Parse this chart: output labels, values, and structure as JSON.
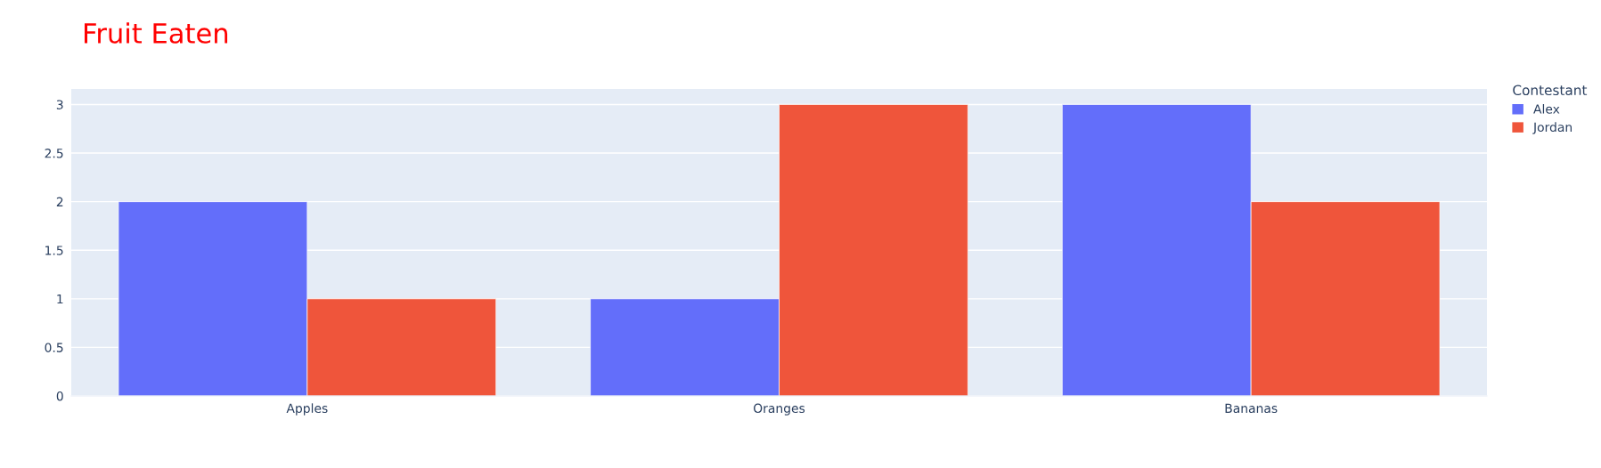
{
  "chart_data": {
    "type": "bar",
    "title": "Fruit Eaten",
    "legend_title": "Contestant",
    "categories": [
      "Apples",
      "Oranges",
      "Bananas"
    ],
    "series": [
      {
        "name": "Alex",
        "color": "#636efa",
        "values": [
          2,
          1,
          3
        ]
      },
      {
        "name": "Jordan",
        "color": "#ef553b",
        "values": [
          1,
          3,
          2
        ]
      }
    ],
    "ylim": [
      0,
      3.16
    ],
    "yticks": [
      0,
      0.5,
      1,
      1.5,
      2,
      2.5,
      3
    ],
    "grid": "y",
    "legend": "top right"
  }
}
